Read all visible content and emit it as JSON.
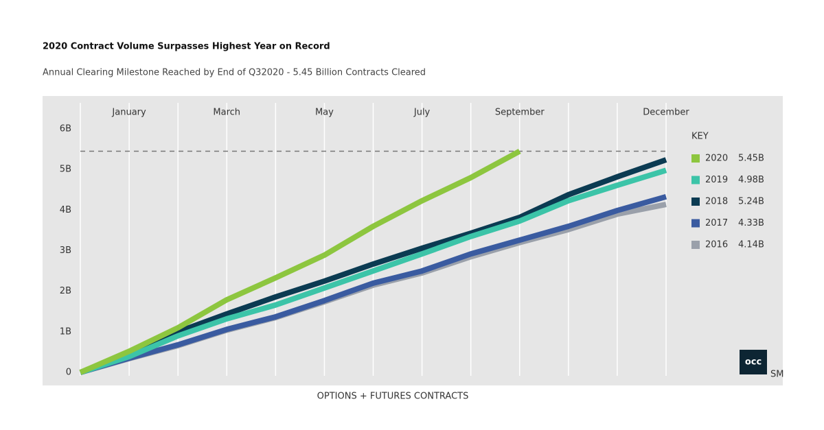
{
  "chart_data": {
    "type": "line",
    "title": "2020 Contract Volume Surpasses Highest Year on Record",
    "subtitle": "Annual Clearing Milestone Reached by End of Q32020 - 5.45 Billion Contracts Cleared",
    "x_label": "OPTIONS + FUTURES CONTRACTS",
    "legend_title": "KEY",
    "categories": [
      null,
      "January",
      null,
      "March",
      null,
      "May",
      null,
      "July",
      null,
      "September",
      null,
      null,
      "December"
    ],
    "ylim": [
      0,
      6
    ],
    "yticks": [
      0,
      {
        "value": 1,
        "label": "1B"
      },
      {
        "value": 2,
        "label": "2B"
      },
      {
        "value": 3,
        "label": "3B"
      },
      {
        "value": 4,
        "label": "4B"
      },
      {
        "value": 5,
        "label": "5B"
      },
      {
        "value": 6,
        "label": "6B"
      }
    ],
    "reference_line": 5.45,
    "series": [
      {
        "name": "2020",
        "total_label": "5.45B",
        "color": "#8dc63f",
        "values": [
          0,
          0.52,
          1.1,
          1.79,
          2.33,
          2.89,
          3.6,
          4.23,
          4.8,
          5.45,
          null,
          null,
          null
        ]
      },
      {
        "name": "2019",
        "total_label": "4.98B",
        "color": "#3cc4a8",
        "values": [
          0,
          0.39,
          0.9,
          1.32,
          1.66,
          2.08,
          2.5,
          2.92,
          3.35,
          3.73,
          4.23,
          4.61,
          4.98
        ]
      },
      {
        "name": "2018",
        "total_label": "5.24B",
        "color": "#0b3b52",
        "values": [
          0,
          0.42,
          1.0,
          1.44,
          1.86,
          2.25,
          2.67,
          3.06,
          3.43,
          3.82,
          4.38,
          4.82,
          5.24
        ]
      },
      {
        "name": "2017",
        "total_label": "4.33B",
        "color": "#3a5ba0",
        "values": [
          0,
          0.35,
          0.68,
          1.06,
          1.37,
          1.77,
          2.2,
          2.5,
          2.92,
          3.26,
          3.6,
          3.99,
          4.33
        ]
      },
      {
        "name": "2016",
        "total_label": "4.14B",
        "color": "#9aa0aa",
        "values": [
          0,
          0.34,
          0.66,
          1.04,
          1.35,
          1.74,
          2.15,
          2.45,
          2.85,
          3.2,
          3.52,
          3.9,
          4.14
        ]
      }
    ],
    "logo": {
      "text": "occ",
      "mark": "SM"
    }
  }
}
